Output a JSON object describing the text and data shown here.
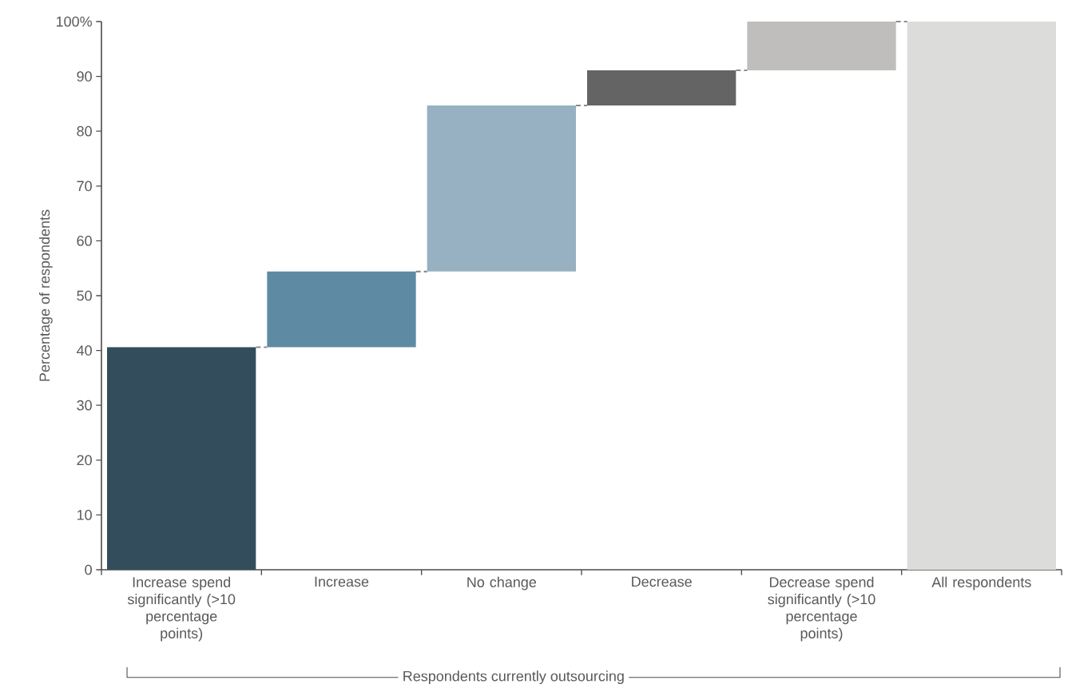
{
  "chart_data": {
    "type": "bar",
    "categories": [
      "Increase spend significantly (>10 percentage points)",
      "Increase",
      "No change",
      "Decrease",
      "Decrease spend significantly (>10 percentage points)",
      "All respondents"
    ],
    "values": [
      40.6,
      13.8,
      30.3,
      6.4,
      8.9,
      100
    ],
    "base": [
      0,
      40.6,
      54.4,
      84.7,
      91.1,
      0
    ],
    "colors": [
      "#344d5c",
      "#5e8aa3",
      "#97b0c2",
      "#646464",
      "#bfbebc",
      "#dcdcdb"
    ],
    "ylabel": "Percentage of respondents",
    "ylim": [
      0,
      100
    ],
    "yticks": [
      0,
      10,
      20,
      30,
      40,
      50,
      60,
      70,
      80,
      90,
      {
        "value": 100,
        "label": "100%"
      }
    ],
    "annotations": [
      "Respondents currently outsourcing"
    ]
  }
}
